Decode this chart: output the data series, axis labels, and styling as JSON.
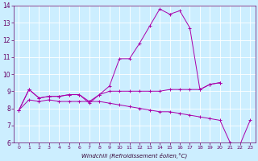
{
  "xlabel": "Windchill (Refroidissement éolien,°C)",
  "background_color": "#cceeff",
  "line_color": "#aa00aa",
  "grid_color": "#ffffff",
  "xlim": [
    -0.5,
    23.5
  ],
  "ylim": [
    6,
    14
  ],
  "xticks": [
    0,
    1,
    2,
    3,
    4,
    5,
    6,
    7,
    8,
    9,
    10,
    11,
    12,
    13,
    14,
    15,
    16,
    17,
    18,
    19,
    20,
    21,
    22,
    23
  ],
  "yticks": [
    6,
    7,
    8,
    9,
    10,
    11,
    12,
    13,
    14
  ],
  "series": [
    {
      "x": [
        0,
        1,
        2,
        3,
        4,
        5,
        6,
        7,
        8,
        9,
        10,
        11,
        12,
        13,
        14,
        15,
        16,
        17,
        18,
        19,
        20
      ],
      "y": [
        7.9,
        9.1,
        8.6,
        8.7,
        8.7,
        8.8,
        8.8,
        8.4,
        8.8,
        9.3,
        10.9,
        10.9,
        11.8,
        12.8,
        13.8,
        13.5,
        13.7,
        12.7,
        9.1,
        9.4,
        9.5
      ]
    },
    {
      "x": [
        0,
        1,
        2,
        3,
        4,
        5,
        6,
        7,
        8,
        9,
        10,
        11,
        12,
        13,
        14,
        15,
        16,
        17,
        18,
        19,
        20
      ],
      "y": [
        7.9,
        9.1,
        8.6,
        8.7,
        8.7,
        8.8,
        8.8,
        8.3,
        8.8,
        9.0,
        9.0,
        9.0,
        9.0,
        9.0,
        9.0,
        9.1,
        9.1,
        9.1,
        9.1,
        9.4,
        9.5
      ]
    },
    {
      "x": [
        0,
        1,
        2,
        3,
        4,
        5,
        6,
        7,
        8,
        9,
        10,
        11,
        12,
        13,
        14,
        15,
        16,
        17,
        18,
        19,
        20,
        21,
        22,
        23
      ],
      "y": [
        7.9,
        8.5,
        8.4,
        8.5,
        8.4,
        8.4,
        8.4,
        8.4,
        8.4,
        8.3,
        8.2,
        8.1,
        8.0,
        7.9,
        7.8,
        7.8,
        7.7,
        7.6,
        7.5,
        7.4,
        7.3,
        6.0,
        5.9,
        7.3
      ]
    }
  ]
}
